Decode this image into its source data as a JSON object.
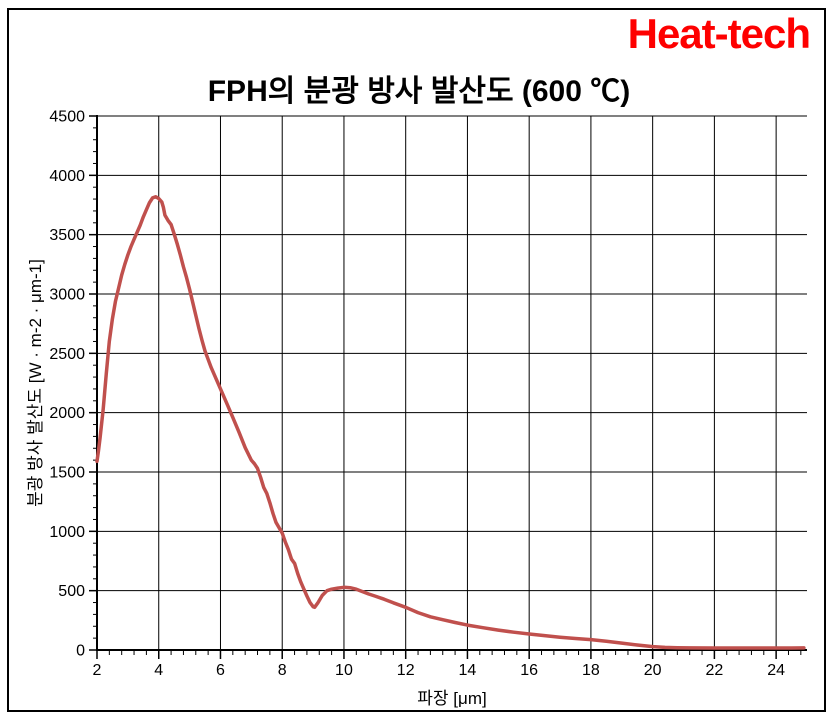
{
  "logo": {
    "text": "Heat-tech",
    "color": "#fe0000"
  },
  "chart_data": {
    "type": "line",
    "title": "FPH의 분광 방사 발산도 (600 ℃)",
    "xlabel": "파장 [μm]",
    "ylabel": "분광 방사 발산도 [W · m-2 · μm-1]",
    "xlim": [
      2,
      25
    ],
    "ylim": [
      0,
      4500
    ],
    "x_major_ticks": [
      2,
      4,
      6,
      8,
      10,
      12,
      14,
      16,
      18,
      20,
      22,
      24
    ],
    "y_major_ticks": [
      0,
      500,
      1000,
      1500,
      2000,
      2500,
      3000,
      3500,
      4000,
      4500
    ],
    "x_minor_step": 0.4,
    "y_minor_step": 100,
    "grid": true,
    "legend": "none",
    "colors": {
      "line": "#c0504d",
      "grid": "#000000",
      "axis": "#000000",
      "text": "#000000"
    },
    "series": [
      {
        "name": "FPH 600℃",
        "points": [
          [
            2.0,
            1590
          ],
          [
            2.05,
            1680
          ],
          [
            2.1,
            1790
          ],
          [
            2.2,
            2030
          ],
          [
            2.3,
            2330
          ],
          [
            2.4,
            2600
          ],
          [
            2.5,
            2790
          ],
          [
            2.6,
            2940
          ],
          [
            2.7,
            3050
          ],
          [
            2.8,
            3160
          ],
          [
            2.9,
            3250
          ],
          [
            3.0,
            3330
          ],
          [
            3.1,
            3400
          ],
          [
            3.2,
            3460
          ],
          [
            3.3,
            3520
          ],
          [
            3.4,
            3580
          ],
          [
            3.5,
            3650
          ],
          [
            3.6,
            3710
          ],
          [
            3.7,
            3770
          ],
          [
            3.8,
            3810
          ],
          [
            3.9,
            3820
          ],
          [
            4.0,
            3805
          ],
          [
            4.1,
            3775
          ],
          [
            4.15,
            3730
          ],
          [
            4.2,
            3665
          ],
          [
            4.3,
            3620
          ],
          [
            4.4,
            3585
          ],
          [
            4.5,
            3505
          ],
          [
            4.6,
            3420
          ],
          [
            4.7,
            3330
          ],
          [
            4.8,
            3230
          ],
          [
            4.9,
            3140
          ],
          [
            5.0,
            3040
          ],
          [
            5.1,
            2930
          ],
          [
            5.2,
            2820
          ],
          [
            5.3,
            2710
          ],
          [
            5.4,
            2610
          ],
          [
            5.5,
            2520
          ],
          [
            5.6,
            2450
          ],
          [
            5.7,
            2380
          ],
          [
            5.8,
            2320
          ],
          [
            6.0,
            2200
          ],
          [
            6.2,
            2080
          ],
          [
            6.4,
            1960
          ],
          [
            6.6,
            1835
          ],
          [
            6.8,
            1705
          ],
          [
            7.0,
            1600
          ],
          [
            7.1,
            1570
          ],
          [
            7.2,
            1530
          ],
          [
            7.3,
            1455
          ],
          [
            7.4,
            1370
          ],
          [
            7.5,
            1320
          ],
          [
            7.6,
            1240
          ],
          [
            7.7,
            1150
          ],
          [
            7.8,
            1075
          ],
          [
            7.9,
            1030
          ],
          [
            8.0,
            985
          ],
          [
            8.1,
            910
          ],
          [
            8.2,
            845
          ],
          [
            8.3,
            765
          ],
          [
            8.4,
            730
          ],
          [
            8.5,
            645
          ],
          [
            8.6,
            575
          ],
          [
            8.7,
            515
          ],
          [
            8.8,
            455
          ],
          [
            8.9,
            400
          ],
          [
            9.0,
            365
          ],
          [
            9.05,
            360
          ],
          [
            9.15,
            395
          ],
          [
            9.3,
            460
          ],
          [
            9.45,
            500
          ],
          [
            9.6,
            512
          ],
          [
            9.8,
            522
          ],
          [
            10.0,
            528
          ],
          [
            10.2,
            525
          ],
          [
            10.4,
            512
          ],
          [
            10.6,
            492
          ],
          [
            10.8,
            472
          ],
          [
            11.0,
            455
          ],
          [
            11.3,
            428
          ],
          [
            11.6,
            398
          ],
          [
            12.0,
            360
          ],
          [
            12.4,
            315
          ],
          [
            12.8,
            280
          ],
          [
            13.2,
            255
          ],
          [
            13.6,
            232
          ],
          [
            14.0,
            210
          ],
          [
            14.5,
            188
          ],
          [
            15.0,
            168
          ],
          [
            15.5,
            150
          ],
          [
            16.0,
            135
          ],
          [
            16.5,
            121
          ],
          [
            17.0,
            108
          ],
          [
            17.5,
            97
          ],
          [
            18.0,
            88
          ],
          [
            18.5,
            74
          ],
          [
            19.0,
            58
          ],
          [
            19.5,
            42
          ],
          [
            20.0,
            29
          ],
          [
            20.4,
            22
          ],
          [
            20.8,
            19
          ],
          [
            21.2,
            18
          ],
          [
            22.0,
            17
          ],
          [
            23.0,
            17
          ],
          [
            24.0,
            17
          ],
          [
            24.5,
            17
          ],
          [
            24.9,
            18
          ]
        ]
      }
    ]
  }
}
